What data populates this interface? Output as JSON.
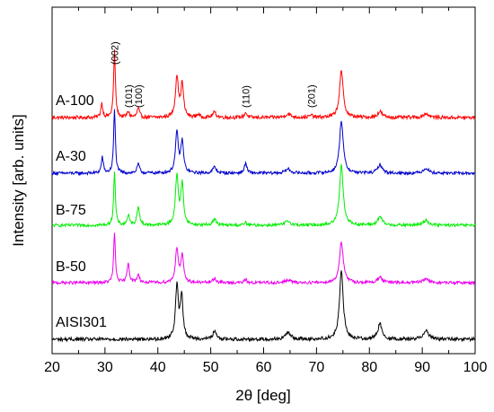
{
  "chart_data": {
    "type": "line",
    "title": "",
    "xlabel": "2θ [deg]",
    "ylabel": "Intensity [arb. units]",
    "xlim": [
      20,
      100
    ],
    "xticks": [
      20,
      30,
      40,
      50,
      60,
      70,
      80,
      90,
      100
    ],
    "grid": false,
    "legend": "inline-left",
    "peak_labels": [
      {
        "text": "(002)",
        "x": 31.8
      },
      {
        "text": "(101)",
        "x": 34.4
      },
      {
        "text": "(100)",
        "x": 36.3
      },
      {
        "text": "(110)",
        "x": 56.6
      },
      {
        "text": "(201)",
        "x": 69.0
      }
    ],
    "series": [
      {
        "name": "A-100",
        "color": "#ff0000",
        "baseline": 0.0,
        "noise": 0.035,
        "peaks": [
          {
            "x": 29.4,
            "h": 0.28,
            "w": 0.22
          },
          {
            "x": 31.8,
            "h": 1.32,
            "w": 0.2
          },
          {
            "x": 34.4,
            "h": 0.12,
            "w": 0.25
          },
          {
            "x": 36.3,
            "h": 0.18,
            "w": 0.28
          },
          {
            "x": 43.6,
            "h": 0.82,
            "w": 0.32
          },
          {
            "x": 44.6,
            "h": 0.66,
            "w": 0.3
          },
          {
            "x": 47.6,
            "h": 0.06,
            "w": 0.3
          },
          {
            "x": 50.7,
            "h": 0.1,
            "w": 0.4
          },
          {
            "x": 56.6,
            "h": 0.1,
            "w": 0.28
          },
          {
            "x": 64.6,
            "h": 0.07,
            "w": 0.6
          },
          {
            "x": 69.0,
            "h": 0.04,
            "w": 0.4
          },
          {
            "x": 74.7,
            "h": 0.92,
            "w": 0.42
          },
          {
            "x": 82.0,
            "h": 0.12,
            "w": 0.5
          },
          {
            "x": 90.7,
            "h": 0.08,
            "w": 0.6
          }
        ]
      },
      {
        "name": "A-30",
        "color": "#0000cc",
        "baseline": 0.0,
        "noise": 0.03,
        "peaks": [
          {
            "x": 29.5,
            "h": 0.32,
            "w": 0.22
          },
          {
            "x": 31.8,
            "h": 1.25,
            "w": 0.2
          },
          {
            "x": 36.3,
            "h": 0.18,
            "w": 0.28
          },
          {
            "x": 43.6,
            "h": 0.8,
            "w": 0.32
          },
          {
            "x": 44.6,
            "h": 0.62,
            "w": 0.3
          },
          {
            "x": 50.7,
            "h": 0.12,
            "w": 0.4
          },
          {
            "x": 56.6,
            "h": 0.2,
            "w": 0.28
          },
          {
            "x": 64.6,
            "h": 0.08,
            "w": 0.6
          },
          {
            "x": 74.7,
            "h": 1.05,
            "w": 0.42
          },
          {
            "x": 82.0,
            "h": 0.17,
            "w": 0.5
          },
          {
            "x": 90.7,
            "h": 0.1,
            "w": 0.6
          }
        ]
      },
      {
        "name": "B-75",
        "color": "#00ee00",
        "baseline": 0.0,
        "noise": 0.03,
        "peaks": [
          {
            "x": 31.8,
            "h": 1.05,
            "w": 0.2
          },
          {
            "x": 34.4,
            "h": 0.2,
            "w": 0.25
          },
          {
            "x": 36.3,
            "h": 0.38,
            "w": 0.28
          },
          {
            "x": 43.6,
            "h": 0.98,
            "w": 0.32
          },
          {
            "x": 44.6,
            "h": 0.8,
            "w": 0.3
          },
          {
            "x": 50.7,
            "h": 0.12,
            "w": 0.4
          },
          {
            "x": 56.6,
            "h": 0.05,
            "w": 0.28
          },
          {
            "x": 64.6,
            "h": 0.08,
            "w": 0.6
          },
          {
            "x": 74.7,
            "h": 1.2,
            "w": 0.42
          },
          {
            "x": 82.0,
            "h": 0.17,
            "w": 0.5
          },
          {
            "x": 90.7,
            "h": 0.1,
            "w": 0.6
          }
        ]
      },
      {
        "name": "B-50",
        "color": "#ee00ee",
        "baseline": 0.0,
        "noise": 0.03,
        "peaks": [
          {
            "x": 31.8,
            "h": 0.98,
            "w": 0.2
          },
          {
            "x": 34.4,
            "h": 0.4,
            "w": 0.25
          },
          {
            "x": 36.3,
            "h": 0.16,
            "w": 0.28
          },
          {
            "x": 43.6,
            "h": 0.68,
            "w": 0.32
          },
          {
            "x": 44.6,
            "h": 0.52,
            "w": 0.3
          },
          {
            "x": 50.7,
            "h": 0.08,
            "w": 0.4
          },
          {
            "x": 56.6,
            "h": 0.06,
            "w": 0.28
          },
          {
            "x": 64.6,
            "h": 0.05,
            "w": 0.6
          },
          {
            "x": 74.7,
            "h": 0.82,
            "w": 0.42
          },
          {
            "x": 82.0,
            "h": 0.12,
            "w": 0.5
          },
          {
            "x": 90.7,
            "h": 0.08,
            "w": 0.6
          }
        ]
      },
      {
        "name": "AISI301",
        "color": "#000000",
        "baseline": 0.0,
        "noise": 0.035,
        "peaks": [
          {
            "x": 43.6,
            "h": 1.05,
            "w": 0.32
          },
          {
            "x": 44.5,
            "h": 0.85,
            "w": 0.3
          },
          {
            "x": 50.7,
            "h": 0.15,
            "w": 0.4
          },
          {
            "x": 64.6,
            "h": 0.13,
            "w": 0.6
          },
          {
            "x": 74.7,
            "h": 1.35,
            "w": 0.42
          },
          {
            "x": 82.0,
            "h": 0.3,
            "w": 0.5
          },
          {
            "x": 90.7,
            "h": 0.18,
            "w": 0.6
          }
        ]
      }
    ]
  }
}
